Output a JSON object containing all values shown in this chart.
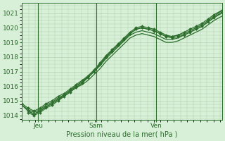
{
  "bg_color": "#d8f0d8",
  "grid_color": "#aaccaa",
  "line_color": "#2d6e2d",
  "marker_color": "#2d6e2d",
  "ylabel_ticks": [
    1014,
    1015,
    1016,
    1017,
    1018,
    1019,
    1020,
    1021
  ],
  "xlabel": "Pression niveau de la mer( hPa )",
  "x_tick_labels": [
    "Jeu",
    "Sam",
    "Ven"
  ],
  "x_tick_positions": [
    0.08,
    0.37,
    0.67
  ],
  "xlim": [
    0,
    1
  ],
  "ylim": [
    1013.7,
    1021.7
  ],
  "title_fontsize": 7,
  "tick_fontsize": 6.5,
  "lines": [
    {
      "x": [
        0.0,
        0.03,
        0.06,
        0.09,
        0.12,
        0.15,
        0.18,
        0.21,
        0.24,
        0.27,
        0.3,
        0.33,
        0.36,
        0.39,
        0.42,
        0.45,
        0.48,
        0.51,
        0.54,
        0.57,
        0.6,
        0.63,
        0.66,
        0.69,
        0.72,
        0.75,
        0.78,
        0.81,
        0.84,
        0.87,
        0.9,
        0.93,
        0.96,
        1.0
      ],
      "y": [
        1014.8,
        1014.5,
        1014.3,
        1014.5,
        1014.8,
        1015.0,
        1015.3,
        1015.5,
        1015.8,
        1016.1,
        1016.4,
        1016.7,
        1017.1,
        1017.5,
        1018.0,
        1018.4,
        1018.8,
        1019.2,
        1019.6,
        1019.9,
        1020.0,
        1019.9,
        1019.8,
        1019.6,
        1019.4,
        1019.4,
        1019.5,
        1019.7,
        1019.9,
        1020.1,
        1020.3,
        1020.6,
        1020.9,
        1021.2
      ],
      "marker": true
    },
    {
      "x": [
        0.0,
        0.03,
        0.06,
        0.09,
        0.12,
        0.15,
        0.18,
        0.21,
        0.24,
        0.27,
        0.3,
        0.33,
        0.36,
        0.39,
        0.42,
        0.45,
        0.48,
        0.51,
        0.54,
        0.57,
        0.6,
        0.63,
        0.66,
        0.69,
        0.72,
        0.75,
        0.78,
        0.81,
        0.84,
        0.87,
        0.9,
        0.93,
        0.96,
        1.0
      ],
      "y": [
        1014.7,
        1014.4,
        1014.2,
        1014.4,
        1014.7,
        1014.9,
        1015.2,
        1015.4,
        1015.7,
        1016.0,
        1016.3,
        1016.6,
        1017.0,
        1017.4,
        1017.9,
        1018.3,
        1018.7,
        1019.1,
        1019.5,
        1019.7,
        1019.8,
        1019.7,
        1019.6,
        1019.4,
        1019.2,
        1019.2,
        1019.3,
        1019.5,
        1019.7,
        1019.9,
        1020.1,
        1020.4,
        1020.7,
        1021.0
      ],
      "marker": false
    },
    {
      "x": [
        0.0,
        0.03,
        0.06,
        0.09,
        0.12,
        0.15,
        0.18,
        0.21,
        0.24,
        0.27,
        0.3,
        0.33,
        0.36,
        0.39,
        0.42,
        0.45,
        0.48,
        0.51,
        0.54,
        0.57,
        0.6,
        0.63,
        0.66,
        0.69,
        0.72,
        0.75,
        0.78,
        0.81,
        0.84,
        0.87,
        0.9,
        0.93,
        0.96,
        1.0
      ],
      "y": [
        1014.7,
        1014.3,
        1014.1,
        1014.3,
        1014.6,
        1014.8,
        1015.1,
        1015.3,
        1015.6,
        1015.9,
        1016.1,
        1016.4,
        1016.8,
        1017.2,
        1017.7,
        1018.1,
        1018.5,
        1018.9,
        1019.3,
        1019.5,
        1019.6,
        1019.5,
        1019.4,
        1019.2,
        1019.0,
        1019.0,
        1019.1,
        1019.3,
        1019.5,
        1019.7,
        1019.9,
        1020.2,
        1020.5,
        1020.8
      ],
      "marker": false
    },
    {
      "x": [
        0.03,
        0.06,
        0.09,
        0.12,
        0.15,
        0.18,
        0.21,
        0.24,
        0.27,
        0.3,
        0.33,
        0.36,
        0.39,
        0.42,
        0.45,
        0.48,
        0.51,
        0.54,
        0.57,
        0.6,
        0.63,
        0.66,
        0.69,
        0.72,
        0.75,
        0.78,
        0.81,
        0.84,
        0.87,
        0.9,
        0.93,
        0.96,
        1.0
      ],
      "y": [
        1014.3,
        1014.1,
        1014.3,
        1014.6,
        1014.8,
        1015.1,
        1015.4,
        1015.7,
        1016.0,
        1016.3,
        1016.7,
        1017.1,
        1017.6,
        1018.1,
        1018.5,
        1018.9,
        1019.3,
        1019.7,
        1020.0,
        1020.1,
        1020.0,
        1019.9,
        1019.7,
        1019.5,
        1019.4,
        1019.5,
        1019.6,
        1019.8,
        1020.0,
        1020.2,
        1020.5,
        1020.8,
        1021.2
      ],
      "marker": true
    },
    {
      "x": [
        0.03,
        0.06,
        0.09,
        0.12,
        0.15,
        0.18,
        0.21,
        0.24,
        0.27,
        0.3,
        0.33,
        0.36,
        0.39,
        0.42,
        0.45,
        0.48,
        0.51,
        0.54,
        0.57,
        0.6,
        0.63,
        0.66,
        0.69,
        0.72,
        0.75,
        0.78,
        0.81,
        0.84,
        0.87,
        0.9,
        0.93,
        0.96,
        1.0
      ],
      "y": [
        1014.2,
        1014.0,
        1014.2,
        1014.5,
        1014.7,
        1015.0,
        1015.3,
        1015.6,
        1015.9,
        1016.2,
        1016.6,
        1017.0,
        1017.5,
        1018.0,
        1018.4,
        1018.8,
        1019.2,
        1019.6,
        1019.9,
        1020.0,
        1019.9,
        1019.8,
        1019.6,
        1019.4,
        1019.3,
        1019.4,
        1019.5,
        1019.7,
        1019.9,
        1020.1,
        1020.4,
        1020.7,
        1021.1
      ],
      "marker": true
    }
  ]
}
